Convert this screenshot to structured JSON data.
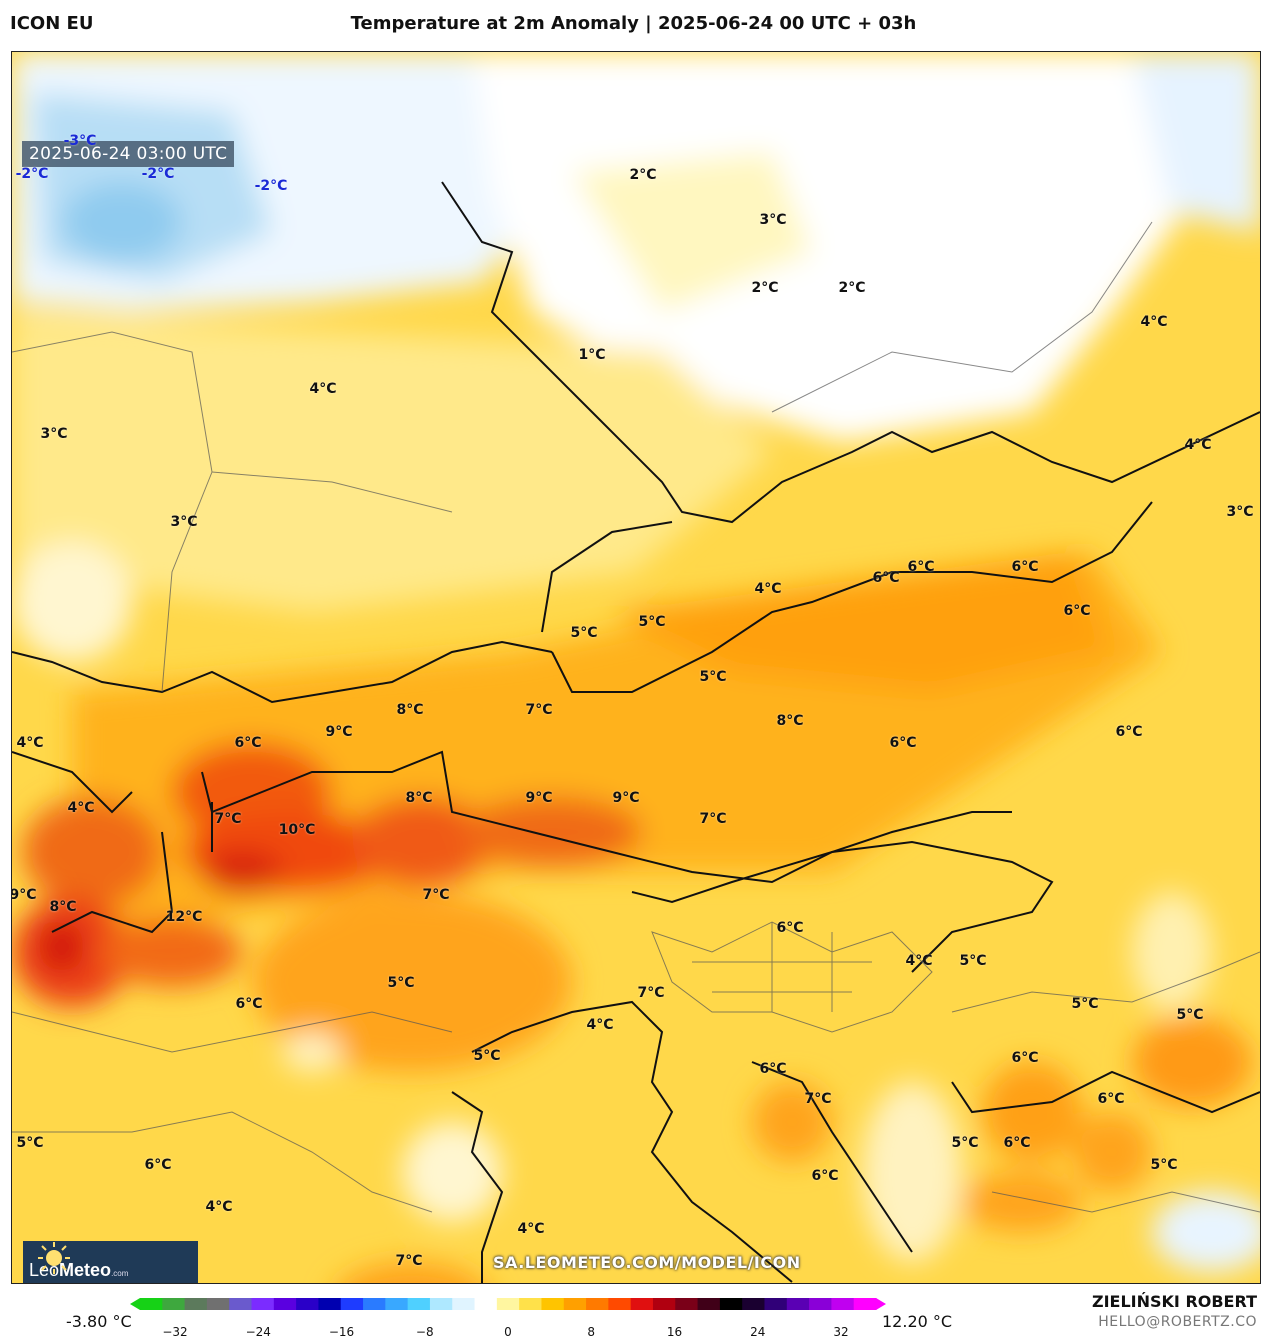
{
  "header": {
    "model": "ICON EU",
    "title": "Temperature at 2m Anomaly | 2025-06-24 00 UTC + 03h"
  },
  "map": {
    "timestamp": "2025-06-24 03:00 UTC",
    "labels": [
      {
        "text": "-3°C",
        "cold": true
      },
      {
        "text": "-2°C",
        "cold": true
      },
      {
        "text": "-2°C",
        "cold": true
      },
      {
        "text": "-2°C",
        "cold": true
      },
      {
        "text": "2°C"
      },
      {
        "text": "3°C"
      },
      {
        "text": "2°C"
      },
      {
        "text": "2°C"
      },
      {
        "text": "1°C"
      },
      {
        "text": "4°C"
      },
      {
        "text": "4°C"
      },
      {
        "text": "3°C"
      },
      {
        "text": "4°C"
      },
      {
        "text": "3°C"
      },
      {
        "text": "3°C"
      },
      {
        "text": "4°C"
      },
      {
        "text": "6°C"
      },
      {
        "text": "6°C"
      },
      {
        "text": "6°C"
      },
      {
        "text": "6°C"
      },
      {
        "text": "5°C"
      },
      {
        "text": "5°C"
      },
      {
        "text": "5°C"
      },
      {
        "text": "7°C"
      },
      {
        "text": "8°C"
      },
      {
        "text": "6°C"
      },
      {
        "text": "9°C"
      },
      {
        "text": "8°C"
      },
      {
        "text": "6°C"
      },
      {
        "text": "6°C"
      },
      {
        "text": "4°C"
      },
      {
        "text": "4°C"
      },
      {
        "text": "8°C"
      },
      {
        "text": "9°C"
      },
      {
        "text": "9°C"
      },
      {
        "text": "7°C"
      },
      {
        "text": "7°C"
      },
      {
        "text": "10°C"
      },
      {
        "text": "9°C"
      },
      {
        "text": "8°C"
      },
      {
        "text": "12°C"
      },
      {
        "text": "7°C"
      },
      {
        "text": "6°C"
      },
      {
        "text": "4°C"
      },
      {
        "text": "5°C"
      },
      {
        "text": "5°C"
      },
      {
        "text": "6°C"
      },
      {
        "text": "7°C"
      },
      {
        "text": "5°C"
      },
      {
        "text": "5°C"
      },
      {
        "text": "6°C"
      },
      {
        "text": "4°C"
      },
      {
        "text": "5°C"
      },
      {
        "text": "6°C"
      },
      {
        "text": "7°C"
      },
      {
        "text": "6°C"
      },
      {
        "text": "6°C"
      },
      {
        "text": "5°C"
      },
      {
        "text": "6°C"
      },
      {
        "text": "5°C"
      },
      {
        "text": "5°C"
      },
      {
        "text": "6°C"
      },
      {
        "text": "4°C"
      },
      {
        "text": "4°C"
      },
      {
        "text": "7°C"
      }
    ]
  },
  "logo": {
    "brand_light": "Leo",
    "brand_bold": "Meteo",
    "suffix": ".com"
  },
  "watermark": "SA.LEOMETEO.COM/MODEL/ICON",
  "colorbar": {
    "min_label": "-3.80 °C",
    "max_label": "12.20 °C",
    "ticks": [
      "−32",
      "−24",
      "−16",
      "−8",
      "0",
      "8",
      "16",
      "24",
      "32"
    ],
    "colors": [
      "#16d216",
      "#3ea83e",
      "#5c7a5c",
      "#707070",
      "#6a5acd",
      "#7b2cff",
      "#5a00e0",
      "#2a00c8",
      "#0000b0",
      "#1e3cff",
      "#2a7bff",
      "#39a8ff",
      "#4fd0ff",
      "#aee8ff",
      "#e0f4ff",
      "#ffffff",
      "#fff6a0",
      "#ffe14a",
      "#ffc400",
      "#ffa000",
      "#ff7a00",
      "#ff4a00",
      "#e01010",
      "#b00010",
      "#7a0018",
      "#400018",
      "#000000",
      "#1a0030",
      "#300078",
      "#5a00b4",
      "#8a00d8",
      "#c000f0",
      "#ff00ff"
    ]
  },
  "credit": {
    "author": "ZIELIŃSKI ROBERT",
    "email": "HELLO@ROBERTZ.CO"
  }
}
